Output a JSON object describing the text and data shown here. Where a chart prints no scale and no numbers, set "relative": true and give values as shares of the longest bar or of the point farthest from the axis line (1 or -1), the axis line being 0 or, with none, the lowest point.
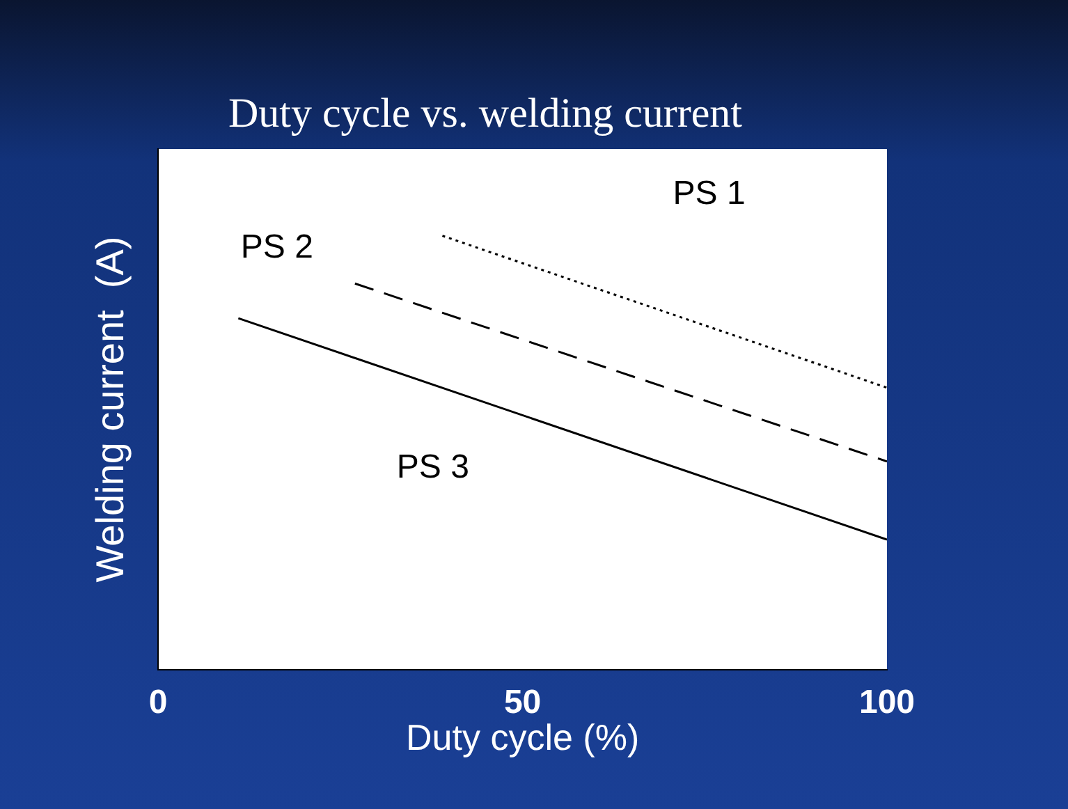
{
  "chart_data": {
    "type": "line",
    "title": "Duty cycle vs. welding current",
    "xlabel": "Duty cycle (%)",
    "ylabel": "Welding current  (A)",
    "relative": true,
    "xlim": [
      0,
      100
    ],
    "xticks": [
      0,
      50,
      100
    ],
    "grid": false,
    "legend": false,
    "marker": "none",
    "series": [
      {
        "name": "PS 1",
        "color": "#000000",
        "line_style": "dotted",
        "x": [
          39,
          100
        ],
        "values": [
          1,
          0.65
        ]
      },
      {
        "name": "PS 2",
        "color": "#000000",
        "line_style": "dashed",
        "x": [
          27,
          100
        ],
        "values": [
          0.89,
          0.48
        ]
      },
      {
        "name": "PS 3",
        "color": "#000000",
        "line_style": "solid",
        "x": [
          11,
          100
        ],
        "values": [
          0.81,
          0.3
        ]
      }
    ]
  }
}
